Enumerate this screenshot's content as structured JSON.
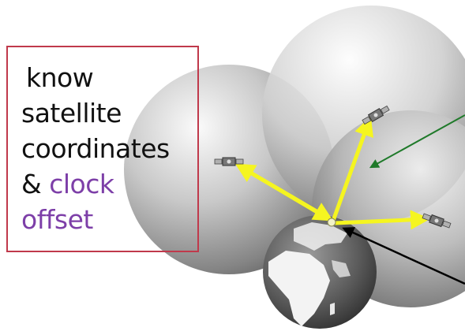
{
  "caption": {
    "line1": "know",
    "line2": "satellite",
    "line3": "coordinates",
    "line4_prefix": "& ",
    "line4_accent": "clock",
    "line5_accent": "offset"
  },
  "colors": {
    "box_border": "#c0394b",
    "accent_text": "#7d3fa8",
    "range_vectors": "#f5f520",
    "green_vector": "#1f7a2a",
    "black_vector": "#000000"
  },
  "icons": {
    "satellites": [
      "satellite-icon",
      "satellite-icon",
      "satellite-icon"
    ],
    "earth": "earth-globe-icon",
    "receiver": "receiver-point-icon"
  }
}
